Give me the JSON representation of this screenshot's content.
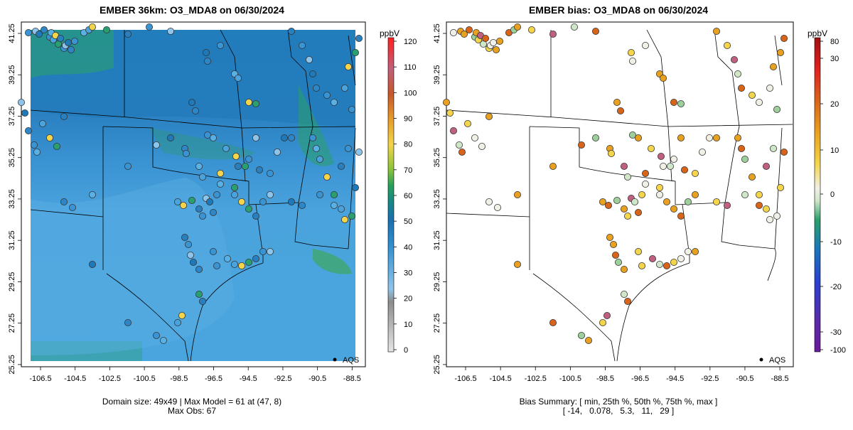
{
  "left": {
    "title": "EMBER 36km: O3_MDA8 on 06/30/2024",
    "colorbar_unit": "ppbV",
    "colorbar_ticks": [
      "0",
      "10",
      "20",
      "30",
      "40",
      "50",
      "60",
      "70",
      "80",
      "90",
      "100",
      "110",
      "120"
    ],
    "footer_line1": "Domain size: 49x49 | Max Model = 61 at (47, 8)",
    "footer_line2": "Max Obs: 67",
    "legend_label": "AQS"
  },
  "right": {
    "title": "EMBER bias: O3_MDA8 on 06/30/2024",
    "colorbar_unit": "ppbV",
    "colorbar_ticks": [
      "-100",
      "-30",
      "-20",
      "-10",
      "0",
      "10",
      "20",
      "30",
      "80"
    ],
    "footer_line1": "Bias Summary: [ min, 25th %, 50th %, 75th %, max ]",
    "footer_line2": "[ -14,   0.078,   5.3,   11,   29 ]",
    "legend_label": "AQS"
  },
  "axes": {
    "x_ticks": [
      "-106.5",
      "-104.5",
      "-102.5",
      "-100.5",
      "-98.5",
      "-96.5",
      "-94.5",
      "-92.5",
      "-90.5",
      "-88.5"
    ],
    "y_ticks": [
      "41.25",
      "39.25",
      "37.25",
      "35.25",
      "33.25",
      "31.25",
      "29.25",
      "27.25",
      "25.25"
    ],
    "lon_range": [
      -107.2,
      -88.0
    ],
    "lat_range": [
      25.25,
      41.9
    ]
  },
  "colors": {
    "model_base": "#4aa3d8",
    "model_north": "#2a7fbf",
    "model_green": "#3aa87a",
    "bias_scale_low": "#6a1b9a",
    "bias_scale_high": "#d00000"
  }
}
